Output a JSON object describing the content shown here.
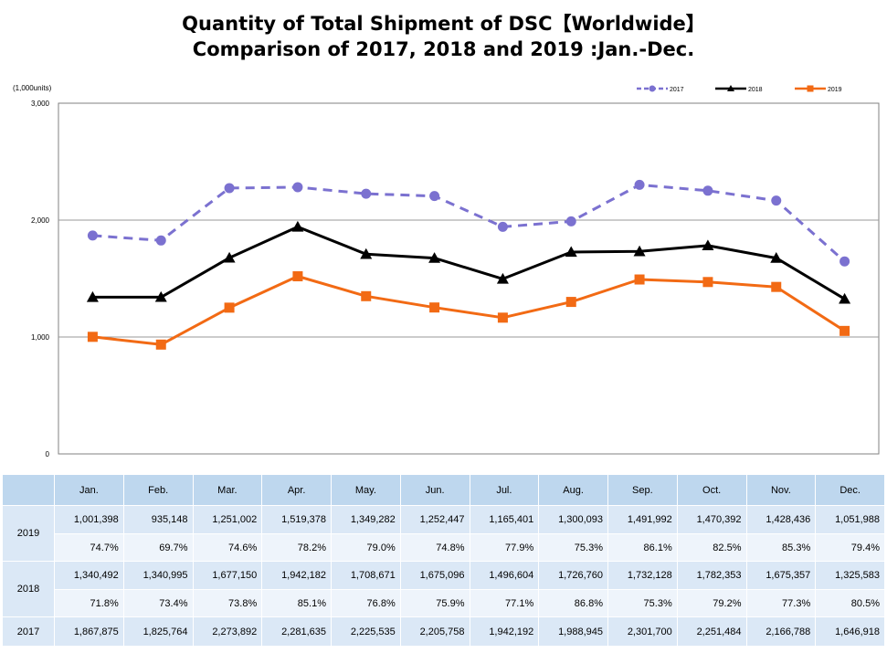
{
  "chart_data": {
    "type": "line",
    "title": "Quantity of Total Shipment of DSC【Worldwide】",
    "subtitle": "Comparison of 2017, 2018 and 2019 :Jan.-Dec.",
    "unit": "(1,000units)",
    "categories": [
      "Jan.",
      "Feb.",
      "Mar.",
      "Apr.",
      "May.",
      "Jun.",
      "Jul.",
      "Aug.",
      "Sep.",
      "Oct.",
      "Nov.",
      "Dec."
    ],
    "ylim": [
      0,
      3000
    ],
    "yticks": [
      "0",
      "1,000",
      "2,000",
      "3,000"
    ],
    "grid": "horizontal",
    "legend_position": "top-right",
    "series": [
      {
        "name": "2017",
        "color": "#7b71d0",
        "style": "dashed",
        "marker": "circle",
        "values": [
          1867.875,
          1825.764,
          2273.892,
          2281.635,
          2225.535,
          2205.758,
          1942.192,
          1988.945,
          2301.7,
          2251.484,
          2166.788,
          1646.918
        ]
      },
      {
        "name": "2018",
        "color": "#000000",
        "style": "solid",
        "marker": "triangle",
        "values": [
          1340.492,
          1340.995,
          1677.15,
          1942.182,
          1708.671,
          1675.096,
          1496.604,
          1726.76,
          1732.128,
          1782.353,
          1675.357,
          1325.583
        ]
      },
      {
        "name": "2019",
        "color": "#f26a14",
        "style": "solid",
        "marker": "square",
        "values": [
          1001.398,
          935.148,
          1251.002,
          1519.378,
          1349.282,
          1252.447,
          1165.401,
          1300.093,
          1491.992,
          1470.392,
          1428.436,
          1051.988
        ]
      }
    ]
  },
  "table": {
    "headers": [
      "Jan.",
      "Feb.",
      "Mar.",
      "Apr.",
      "May.",
      "Jun.",
      "Jul.",
      "Aug.",
      "Sep.",
      "Oct.",
      "Nov.",
      "Dec."
    ],
    "y2019": {
      "label": "2019",
      "values": [
        "1,001,398",
        "935,148",
        "1,251,002",
        "1,519,378",
        "1,349,282",
        "1,252,447",
        "1,165,401",
        "1,300,093",
        "1,491,992",
        "1,470,392",
        "1,428,436",
        "1,051,988"
      ],
      "pct": [
        "74.7%",
        "69.7%",
        "74.6%",
        "78.2%",
        "79.0%",
        "74.8%",
        "77.9%",
        "75.3%",
        "86.1%",
        "82.5%",
        "85.3%",
        "79.4%"
      ]
    },
    "y2018": {
      "label": "2018",
      "values": [
        "1,340,492",
        "1,340,995",
        "1,677,150",
        "1,942,182",
        "1,708,671",
        "1,675,096",
        "1,496,604",
        "1,726,760",
        "1,732,128",
        "1,782,353",
        "1,675,357",
        "1,325,583"
      ],
      "pct": [
        "71.8%",
        "73.4%",
        "73.8%",
        "85.1%",
        "76.8%",
        "75.9%",
        "77.1%",
        "86.8%",
        "75.3%",
        "79.2%",
        "77.3%",
        "80.5%"
      ]
    },
    "y2017": {
      "label": "2017",
      "values": [
        "1,867,875",
        "1,825,764",
        "2,273,892",
        "2,281,635",
        "2,225,535",
        "2,205,758",
        "1,942,192",
        "1,988,945",
        "2,301,700",
        "2,251,484",
        "2,166,788",
        "1,646,918"
      ]
    }
  }
}
